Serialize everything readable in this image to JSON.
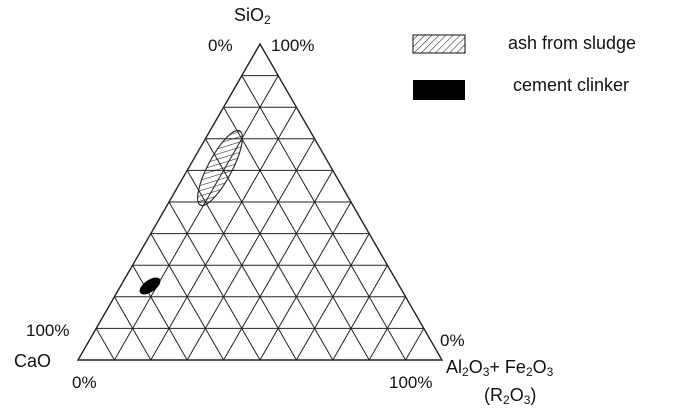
{
  "diagram": {
    "type": "ternary",
    "grid_divisions": 10,
    "vertices": {
      "top": {
        "base": "SiO",
        "sub": "2",
        "left_tick": "0%",
        "right_tick": "100%"
      },
      "bottom_left": {
        "name": "CaO",
        "upper_tick": "100%",
        "lower_tick": "0%"
      },
      "bottom_right": {
        "part1": "Al",
        "sub1": "2",
        "part2": "O",
        "sub2": "3",
        "plus": "+ Fe",
        "sub3": "2",
        "part3": "O",
        "sub4": "3",
        "alias_open": "(R",
        "alias_sub1": "2",
        "alias_mid": "O",
        "alias_sub2": "3",
        "alias_close": ")",
        "upper_tick": "0%",
        "lower_tick": "100%"
      }
    },
    "regions": [
      {
        "name": "ash from sludge",
        "style": "hatched"
      },
      {
        "name": "cement clinker",
        "style": "solid"
      }
    ],
    "legend": {
      "items": [
        {
          "label": "ash from sludge",
          "style": "hatched"
        },
        {
          "label": "cement clinker",
          "style": "solid"
        }
      ]
    },
    "colors": {
      "line": "#222222",
      "fill": "#000000",
      "background": "#ffffff"
    }
  }
}
